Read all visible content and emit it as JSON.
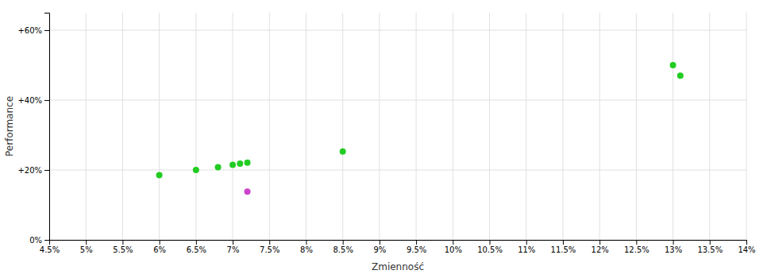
{
  "chart_data": {
    "type": "scatter",
    "x_label": "Zmienność",
    "y_label": "Performance",
    "xlim": [
      0.045,
      0.14
    ],
    "ylim": [
      0.0,
      0.65
    ],
    "xticks": [
      {
        "value": 0.045,
        "label": "4.5%"
      },
      {
        "value": 0.05,
        "label": "5%"
      },
      {
        "value": 0.055,
        "label": "5.5%"
      },
      {
        "value": 0.06,
        "label": "6%"
      },
      {
        "value": 0.065,
        "label": "6.5%"
      },
      {
        "value": 0.07,
        "label": "7%"
      },
      {
        "value": 0.075,
        "label": "7.5%"
      },
      {
        "value": 0.08,
        "label": "8%"
      },
      {
        "value": 0.085,
        "label": "8.5%"
      },
      {
        "value": 0.09,
        "label": "9%"
      },
      {
        "value": 0.095,
        "label": "9.5%"
      },
      {
        "value": 0.1,
        "label": "10%"
      },
      {
        "value": 0.105,
        "label": "10.5%"
      },
      {
        "value": 0.11,
        "label": "11%"
      },
      {
        "value": 0.115,
        "label": "11.5%"
      },
      {
        "value": 0.12,
        "label": "12%"
      },
      {
        "value": 0.125,
        "label": "12.5%"
      },
      {
        "value": 0.13,
        "label": "13%"
      },
      {
        "value": 0.135,
        "label": "13.5%"
      },
      {
        "value": 0.14,
        "label": "14%"
      }
    ],
    "yticks": [
      {
        "value": 0.0,
        "label": "0%"
      },
      {
        "value": 0.2,
        "label": "+20%"
      },
      {
        "value": 0.4,
        "label": "+40%"
      },
      {
        "value": 0.6,
        "label": "+60%"
      }
    ],
    "grid": true,
    "series": [
      {
        "color": "#22cc22",
        "x": [
          0.06,
          0.065,
          0.068,
          0.07,
          0.071,
          0.072,
          0.085,
          0.13,
          0.131
        ],
        "values": [
          0.185,
          0.2,
          0.208,
          0.215,
          0.218,
          0.221,
          0.253,
          0.5,
          0.47
        ]
      },
      {
        "color": "#cc44cc",
        "x": [
          0.072
        ],
        "values": [
          0.138
        ]
      }
    ]
  }
}
